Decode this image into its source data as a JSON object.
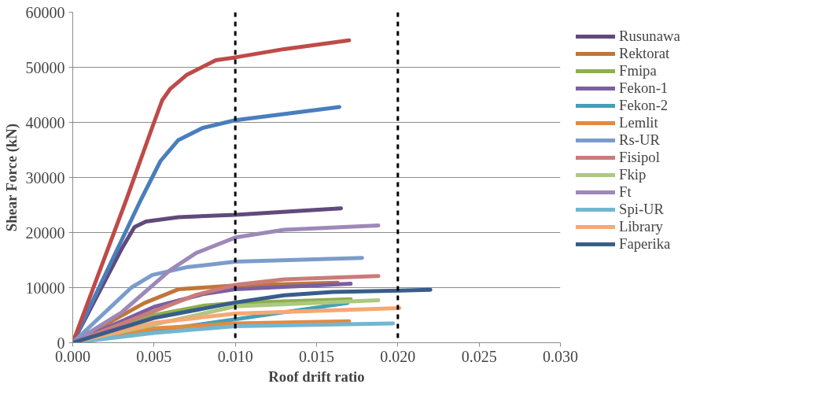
{
  "chart_data": {
    "type": "line",
    "xlabel": "Roof drift ratio",
    "ylabel": "Shear Force (kN)",
    "xlim": [
      0,
      0.03
    ],
    "ylim": [
      0,
      60000
    ],
    "xticks": [
      {
        "value": 0,
        "label": "0.000"
      },
      {
        "value": 0.005,
        "label": "0.005"
      },
      {
        "value": 0.01,
        "label": "0.010"
      },
      {
        "value": 0.015,
        "label": "0.015"
      },
      {
        "value": 0.02,
        "label": "0.020"
      },
      {
        "value": 0.025,
        "label": "0.025"
      },
      {
        "value": 0.03,
        "label": "0.030"
      }
    ],
    "yticks": [
      0,
      10000,
      20000,
      30000,
      40000,
      50000,
      60000
    ],
    "grid": "y",
    "legend": "right",
    "marker": "none",
    "line_style": "solid",
    "ref_lines": [
      {
        "axis": "x",
        "value": 0.01,
        "color": "#000000",
        "line_style": "dashed"
      },
      {
        "axis": "x",
        "value": 0.02,
        "color": "#000000",
        "line_style": "dashed"
      }
    ],
    "series": [
      {
        "name": "Rusunawa",
        "color": "#604a7b",
        "x": [
          0,
          0.003,
          0.0038,
          0.0045,
          0.0065,
          0.01,
          0.0165
        ],
        "values": [
          0,
          17000,
          21000,
          22000,
          22800,
          23200,
          24400
        ]
      },
      {
        "name": "Rektorat",
        "color": "#c0763a",
        "x": [
          0,
          0.0044,
          0.0065,
          0.01,
          0.0163
        ],
        "values": [
          0,
          7200,
          9700,
          10400,
          10900
        ]
      },
      {
        "color": "#4a7ebb",
        "x": [
          0,
          0.0042,
          0.0054,
          0.0065,
          0.008,
          0.01,
          0.0164
        ],
        "values": [
          0,
          26000,
          33000,
          36800,
          39000,
          40400,
          42800
        ]
      },
      {
        "color": "#be4b48",
        "x": [
          0,
          0.0033,
          0.005,
          0.0055,
          0.006,
          0.007,
          0.0088,
          0.01,
          0.013,
          0.017
        ],
        "values": [
          0,
          26000,
          40000,
          44000,
          46100,
          48600,
          51300,
          51800,
          53300,
          54900
        ]
      },
      {
        "name": "Fmipa",
        "color": "#8fae4f",
        "x": [
          0,
          0.005,
          0.008,
          0.01,
          0.0171
        ],
        "values": [
          0,
          5000,
          6700,
          7200,
          7900
        ]
      },
      {
        "name": "Fekon-1",
        "color": "#7b5fa0",
        "x": [
          0,
          0.005,
          0.008,
          0.01,
          0.0171
        ],
        "values": [
          0,
          6500,
          8800,
          9700,
          10700
        ]
      },
      {
        "name": "Fekon-2",
        "color": "#45a0b6",
        "x": [
          0,
          0.0169
        ],
        "values": [
          0,
          7200
        ]
      },
      {
        "name": "Lemlit",
        "color": "#e5893f",
        "x": [
          0,
          0.005,
          0.01,
          0.017
        ],
        "values": [
          0,
          2600,
          3500,
          3900
        ]
      },
      {
        "name": "Rs-UR",
        "color": "#7b9ccb",
        "x": [
          0,
          0.0036,
          0.0049,
          0.007,
          0.01,
          0.0178
        ],
        "values": [
          0,
          10000,
          12300,
          13700,
          14700,
          15400
        ]
      },
      {
        "name": "Fisipol",
        "color": "#cb7b7a",
        "x": [
          0,
          0.0076,
          0.01,
          0.013,
          0.0188
        ],
        "values": [
          0,
          8700,
          10500,
          11500,
          12100
        ]
      },
      {
        "name": "Fkip",
        "color": "#adc880",
        "x": [
          0,
          0.01,
          0.0188
        ],
        "values": [
          0,
          6600,
          7700
        ]
      },
      {
        "name": "Ft",
        "color": "#9c89b8",
        "x": [
          0,
          0.003,
          0.006,
          0.0076,
          0.01,
          0.013,
          0.0188
        ],
        "values": [
          0,
          5500,
          13200,
          16300,
          19100,
          20500,
          21300
        ]
      },
      {
        "name": "Spi-UR",
        "color": "#72b7cf",
        "x": [
          0,
          0.005,
          0.01,
          0.0197
        ],
        "values": [
          0,
          1800,
          3000,
          3500
        ]
      },
      {
        "name": "Library",
        "color": "#f6a874",
        "x": [
          0,
          0.005,
          0.01,
          0.0201
        ],
        "values": [
          0,
          3600,
          5300,
          6300
        ]
      },
      {
        "name": "Faperika",
        "color": "#385d8a",
        "x": [
          0,
          0.005,
          0.01,
          0.013,
          0.016,
          0.022
        ],
        "values": [
          0,
          4500,
          7300,
          8600,
          9200,
          9600
        ]
      }
    ]
  }
}
